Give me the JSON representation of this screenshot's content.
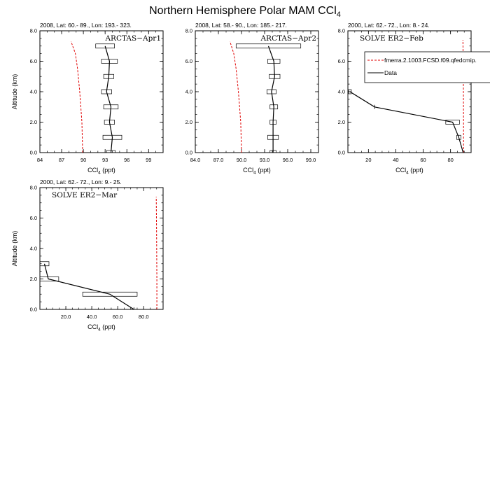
{
  "figure": {
    "title": "Northern Hemisphere Polar MAM CCl",
    "title_sub": "4"
  },
  "chart_data": [
    {
      "type": "line",
      "header": "2008, Lat:  60.- 89., Lon: 193.- 323.",
      "label": "ARCTAS−Apr1",
      "ylabel": "Altitude (km)",
      "xlabel": "CCl",
      "xlabel_sub": "4",
      "xlabel_unit": " (ppt)",
      "xlim": [
        84,
        101
      ],
      "ylim": [
        0,
        8
      ],
      "xticks": [
        84,
        87,
        90,
        93,
        96,
        99
      ],
      "xticklabels": [
        "84",
        "87",
        "90",
        "93",
        "96",
        "99"
      ],
      "yticks": [
        0,
        2,
        4,
        6,
        8
      ],
      "yticklabels": [
        "0.0",
        "2.0",
        "4.0",
        "6.0",
        "8.0"
      ],
      "legend": null,
      "series": [
        {
          "style": "model",
          "color": "#e00000",
          "dash": true,
          "x": [
            89.9,
            89.8,
            89.5,
            89.2,
            88.9,
            88.3
          ],
          "y": [
            0,
            2,
            4,
            5.5,
            6.5,
            7.3
          ]
        },
        {
          "style": "data",
          "color": "#000000",
          "dash": false,
          "x": [
            93.8,
            94.0,
            93.6,
            93.8,
            93.2,
            93.5,
            93.6,
            93.0
          ],
          "y": [
            0,
            1,
            2,
            3,
            4,
            5,
            6,
            7
          ],
          "xerr": [
            0.6,
            1.3,
            0.7,
            1.0,
            0.7,
            0.7,
            1.1,
            1.3
          ]
        }
      ]
    },
    {
      "type": "line",
      "header": "2008, Lat:  58.- 90., Lon: 185.- 217.",
      "label": "ARCTAS−Apr2",
      "ylabel": "",
      "xlabel": "CCl",
      "xlabel_sub": "4",
      "xlabel_unit": " (ppt)",
      "xlim": [
        84,
        100
      ],
      "ylim": [
        0,
        8
      ],
      "xticks": [
        84,
        87,
        90,
        93,
        96,
        99
      ],
      "xticklabels": [
        "84.0",
        "87.0",
        "90.0",
        "93.0",
        "96.0",
        "99.0"
      ],
      "yticks": [
        0,
        2,
        4,
        6,
        8
      ],
      "yticklabels": [
        "0.0",
        "2.0",
        "4.0",
        "6.0",
        "8.0"
      ],
      "legend": null,
      "series": [
        {
          "style": "model",
          "color": "#e00000",
          "dash": true,
          "x": [
            90.0,
            89.9,
            89.6,
            89.3,
            89.0,
            88.5
          ],
          "y": [
            0,
            2,
            4,
            5.5,
            6.5,
            7.3
          ]
        },
        {
          "style": "data",
          "color": "#000000",
          "dash": false,
          "x": [
            94.1,
            94.1,
            94.1,
            94.2,
            93.9,
            94.3,
            94.2,
            93.5
          ],
          "y": [
            0,
            1,
            2,
            3,
            4,
            5,
            6,
            7
          ],
          "xerr": [
            0.4,
            0.7,
            0.4,
            0.5,
            0.6,
            0.7,
            0.8,
            4.2
          ]
        }
      ]
    },
    {
      "type": "line",
      "header": "2000, Lat: 62.- 72., Lon: 8.- 24.",
      "label": "SOLVE ER2−Feb",
      "ylabel": "",
      "xlabel": "CCl",
      "xlabel_sub": "4",
      "xlabel_unit": " (ppt)",
      "xlim": [
        5,
        95
      ],
      "ylim": [
        0,
        8
      ],
      "xticks": [
        20,
        40,
        60,
        80
      ],
      "xticklabels": [
        "20",
        "40",
        "60",
        "80"
      ],
      "yticks": [
        0,
        2,
        4,
        6,
        8
      ],
      "yticklabels": [
        "0.0",
        "2.0",
        "4.0",
        "6.0",
        "8.0"
      ],
      "legend": {
        "placement": "top-right",
        "entries": [
          {
            "label": "fmerra.2.1003.FCSD.f09.qfedcmip.",
            "color": "#e00000",
            "dash": true
          },
          {
            "label": "Data",
            "color": "#000000",
            "dash": false
          }
        ]
      },
      "series": [
        {
          "style": "model",
          "color": "#e00000",
          "dash": true,
          "x": [
            89.5,
            89.5,
            89.3,
            89.0
          ],
          "y": [
            0,
            2,
            5,
            7.4
          ]
        },
        {
          "style": "data",
          "color": "#000000",
          "dash": false,
          "x": [
            89.2,
            86.0,
            81.5,
            24.5,
            6.5
          ],
          "y": [
            0,
            1,
            2,
            3,
            4
          ],
          "xerr": [
            0,
            1.5,
            5.0,
            0,
            1.0
          ]
        }
      ]
    },
    {
      "type": "line",
      "header": "2000, Lat: 62.- 72., Lon: 9.- 25.",
      "label": "SOLVE ER2−Mar",
      "ylabel": "Altitude (km)",
      "xlabel": "CCl",
      "xlabel_sub": "4",
      "xlabel_unit": " (ppt)",
      "xlim": [
        0,
        95
      ],
      "ylim": [
        0,
        8
      ],
      "xticks": [
        20,
        40,
        60,
        80
      ],
      "xticklabels": [
        "20.0",
        "40.0",
        "60.0",
        "80.0"
      ],
      "yticks": [
        0,
        2,
        4,
        6,
        8
      ],
      "yticklabels": [
        "0.0",
        "2.0",
        "4.0",
        "6.0",
        "8.0"
      ],
      "legend": null,
      "series": [
        {
          "style": "model",
          "color": "#e00000",
          "dash": true,
          "x": [
            90.2,
            90.2,
            90.0,
            89.7
          ],
          "y": [
            0,
            2,
            5,
            7.4
          ]
        },
        {
          "style": "data",
          "color": "#000000",
          "dash": false,
          "x": [
            72.5,
            54.0,
            6.5,
            3.5
          ],
          "y": [
            0,
            1,
            2,
            3
          ],
          "xerr": [
            0,
            21.0,
            8.0,
            3.5
          ]
        }
      ]
    }
  ]
}
